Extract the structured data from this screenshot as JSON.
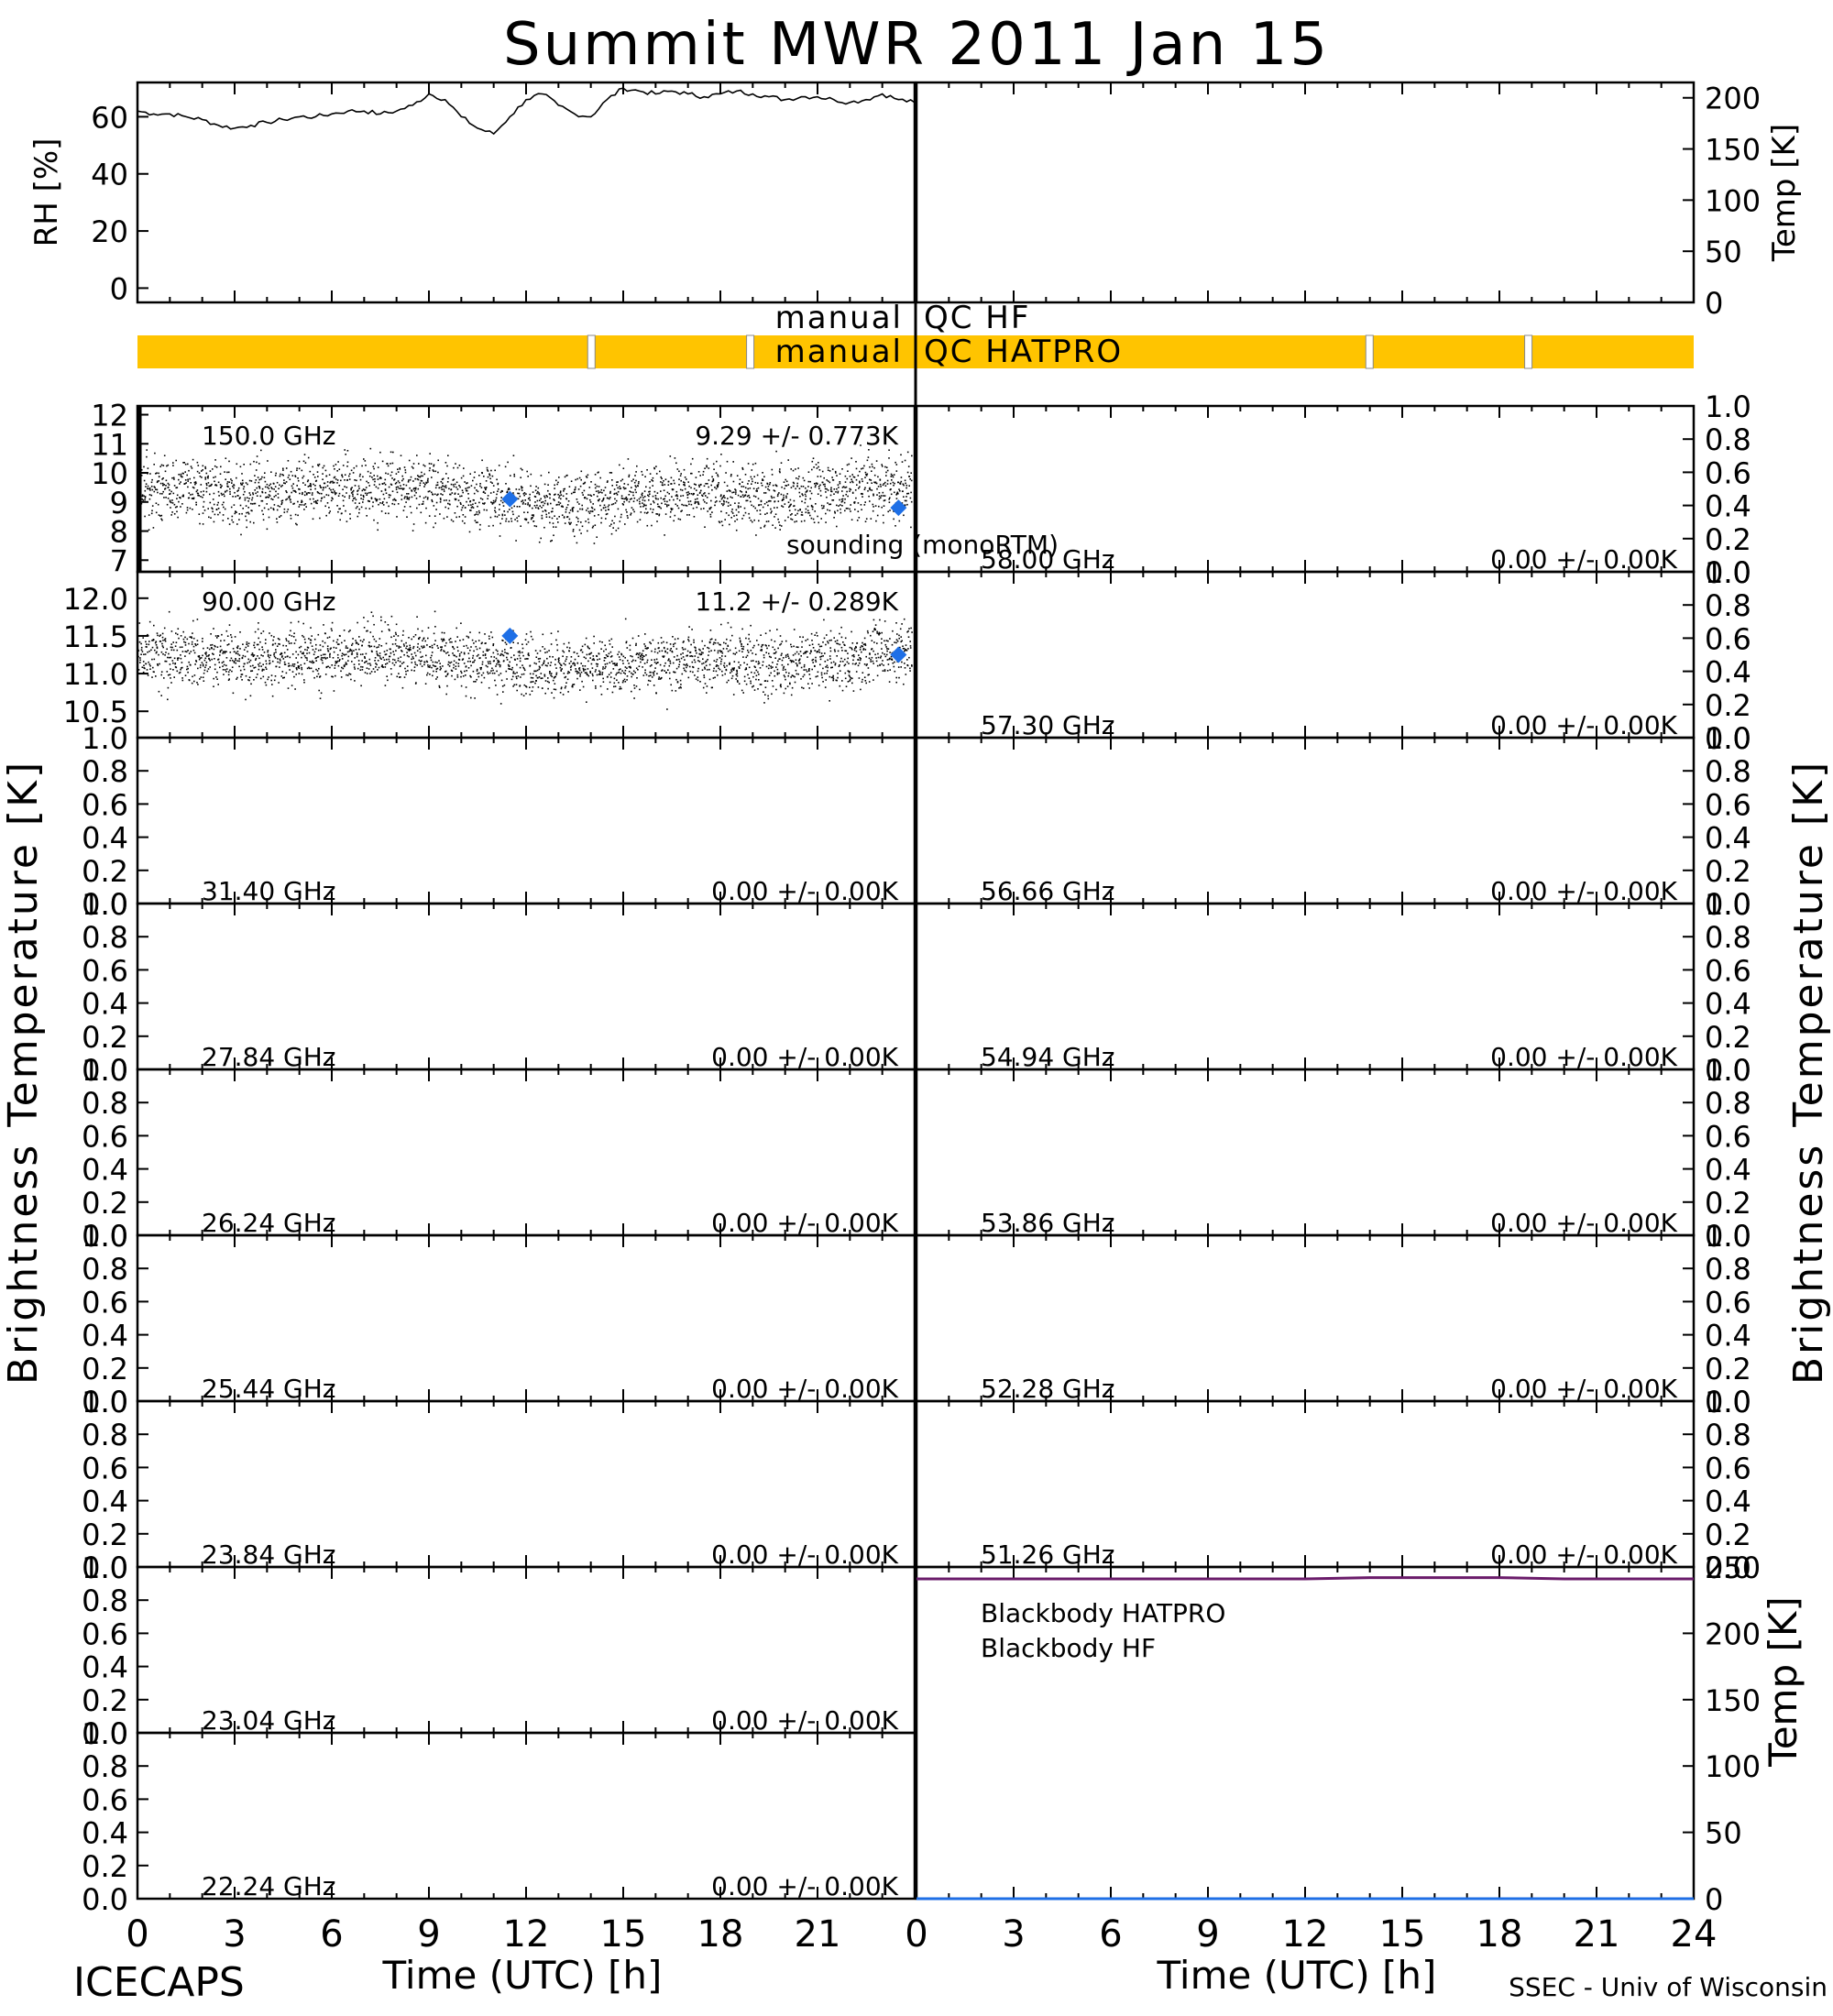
{
  "title": "Summit MWR 2011 Jan 15",
  "footer": {
    "left": "ICECAPS",
    "right": "SSEC - Univ of Wisconsin",
    "xlabel_left": "Time (UTC) [h]",
    "xlabel_right": "Time (UTC) [h]"
  },
  "colors": {
    "axis": "#000000",
    "annotation": "#ff0000",
    "sounding": "#1e6fe6",
    "qc_bar": "#ffc400",
    "bb_hatpro": "#1e6fe6",
    "bb_hf": "#6a1b6a"
  },
  "chart_data": [
    {
      "id": "rh",
      "type": "line",
      "ylabel": "RH [%]",
      "x_range": [
        0,
        24
      ],
      "ylim": [
        -5,
        72
      ],
      "yticks": [
        "0",
        "20",
        "40",
        "60"
      ],
      "x": [
        0,
        0.5,
        1,
        1.5,
        2,
        2.5,
        3,
        3.5,
        4,
        4.5,
        5,
        5.5,
        6,
        6.5,
        7,
        7.5,
        8,
        8.5,
        9,
        9.5,
        10,
        10.5,
        11,
        11.5,
        12,
        12.5,
        13,
        13.5,
        14,
        14.5,
        15,
        15.5,
        16,
        16.5,
        17,
        17.5,
        18,
        18.5,
        19,
        19.5,
        20,
        20.5,
        21,
        21.5,
        22,
        22.5,
        23,
        23.5,
        24
      ],
      "values": [
        62,
        61,
        61,
        60,
        59,
        57,
        56,
        57,
        58,
        59,
        60,
        60,
        61,
        62,
        62,
        61,
        62,
        64,
        68,
        66,
        60,
        56,
        54,
        60,
        66,
        68,
        64,
        61,
        60,
        66,
        70,
        69,
        68,
        69,
        68,
        67,
        68,
        69,
        68,
        67,
        66,
        67,
        67,
        66,
        65,
        66,
        68,
        66,
        65
      ]
    },
    {
      "id": "temp-top",
      "type": "line",
      "ylabel": "Temp [K]",
      "x_range": [
        0,
        24
      ],
      "ylim": [
        0,
        215
      ],
      "yticks": [
        "0",
        "50",
        "100",
        "150",
        "200"
      ],
      "x": [
        0,
        24
      ],
      "values": [
        null,
        null
      ]
    },
    {
      "id": "qc",
      "type": "table",
      "labels": [
        "manual",
        "QC HF",
        "manual",
        "QC HATPRO"
      ],
      "bar_gaps_hours": [
        14.0,
        18.9,
        38.0,
        42.9
      ]
    },
    {
      "id": "bt-150",
      "type": "scatter",
      "freq_label": "150.0 GHz",
      "stats_label": "9.29 +/- 0.773K",
      "ylim": [
        6.6,
        12.3
      ],
      "yticks": [
        "7",
        "8",
        "9",
        "10",
        "11",
        "12"
      ],
      "mean": 9.29,
      "std": 0.773,
      "sounding_x": [
        11.5,
        23.5
      ],
      "sounding_y": [
        9.1,
        8.8
      ],
      "sounding_label": "sounding (monoRTM)"
    },
    {
      "id": "bt-090",
      "type": "scatter",
      "freq_label": "90.00 GHz",
      "stats_label": "11.2 +/- 0.289K",
      "ylim": [
        10.15,
        12.35
      ],
      "yticks": [
        "10.5",
        "11.0",
        "11.5",
        "12.0"
      ],
      "mean": 11.2,
      "std": 0.289,
      "sounding_x": [
        11.5,
        23.5
      ],
      "sounding_y": [
        11.5,
        11.25
      ]
    },
    {
      "id": "bt-3140",
      "type": "scatter",
      "freq_label": "31.40 GHz",
      "stats_label": "0.00 +/- 0.00K",
      "ylim": [
        0,
        1
      ]
    },
    {
      "id": "bt-2784",
      "type": "scatter",
      "freq_label": "27.84 GHz",
      "stats_label": "0.00 +/- 0.00K",
      "ylim": [
        0,
        1
      ]
    },
    {
      "id": "bt-2624",
      "type": "scatter",
      "freq_label": "26.24 GHz",
      "stats_label": "0.00 +/- 0.00K",
      "ylim": [
        0,
        1
      ]
    },
    {
      "id": "bt-2544",
      "type": "scatter",
      "freq_label": "25.44 GHz",
      "stats_label": "0.00 +/- 0.00K",
      "ylim": [
        0,
        1
      ]
    },
    {
      "id": "bt-2384",
      "type": "scatter",
      "freq_label": "23.84 GHz",
      "stats_label": "0.00 +/- 0.00K",
      "ylim": [
        0,
        1
      ]
    },
    {
      "id": "bt-2304",
      "type": "scatter",
      "freq_label": "23.04 GHz",
      "stats_label": "0.00 +/- 0.00K",
      "ylim": [
        0,
        1
      ]
    },
    {
      "id": "bt-2224",
      "type": "scatter",
      "freq_label": "22.24 GHz",
      "stats_label": "0.00 +/- 0.00K",
      "ylim": [
        0,
        1
      ]
    },
    {
      "id": "bt-5800",
      "type": "scatter",
      "freq_label": "58.00 GHz",
      "stats_label": "0.00 +/- 0.00K",
      "ylim": [
        0,
        1
      ]
    },
    {
      "id": "bt-5730",
      "type": "scatter",
      "freq_label": "57.30 GHz",
      "stats_label": "0.00 +/- 0.00K",
      "ylim": [
        0,
        1
      ]
    },
    {
      "id": "bt-5666",
      "type": "scatter",
      "freq_label": "56.66 GHz",
      "stats_label": "0.00 +/- 0.00K",
      "ylim": [
        0,
        1
      ]
    },
    {
      "id": "bt-5494",
      "type": "scatter",
      "freq_label": "54.94 GHz",
      "stats_label": "0.00 +/- 0.00K",
      "ylim": [
        0,
        1
      ]
    },
    {
      "id": "bt-5386",
      "type": "scatter",
      "freq_label": "53.86 GHz",
      "stats_label": "0.00 +/- 0.00K",
      "ylim": [
        0,
        1
      ]
    },
    {
      "id": "bt-5228",
      "type": "scatter",
      "freq_label": "52.28 GHz",
      "stats_label": "0.00 +/- 0.00K",
      "ylim": [
        0,
        1
      ]
    },
    {
      "id": "bt-5126",
      "type": "scatter",
      "freq_label": "51.26 GHz",
      "stats_label": "0.00 +/- 0.00K",
      "ylim": [
        0,
        1
      ]
    },
    {
      "id": "blackbody",
      "type": "line",
      "ylabel": "Temp [K]",
      "ylim": [
        0,
        250
      ],
      "yticks": [
        "0",
        "50",
        "100",
        "150",
        "200",
        "250"
      ],
      "series": [
        {
          "name": "Blackbody HATPRO",
          "x": [
            0,
            24
          ],
          "values": [
            0,
            0
          ]
        },
        {
          "name": "Blackbody HF",
          "x": [
            0,
            2,
            4,
            6,
            8,
            10,
            12,
            14,
            16,
            18,
            20,
            22,
            24
          ],
          "values": [
            241,
            241,
            241,
            241,
            241,
            241,
            241,
            242,
            242,
            242,
            241,
            241,
            241
          ]
        }
      ]
    }
  ],
  "shared_ylabel_left": "Brightness Temperature [K]",
  "shared_ylabel_right": "Brightness Temperature [K]",
  "xticks_left": [
    "0",
    "3",
    "6",
    "9",
    "12",
    "15",
    "18",
    "21"
  ],
  "xticks_right": [
    "0",
    "3",
    "6",
    "9",
    "12",
    "15",
    "18",
    "21",
    "24"
  ],
  "zero_one_ticks": [
    "0.0",
    "0.2",
    "0.4",
    "0.6",
    "0.8",
    "1.0"
  ]
}
